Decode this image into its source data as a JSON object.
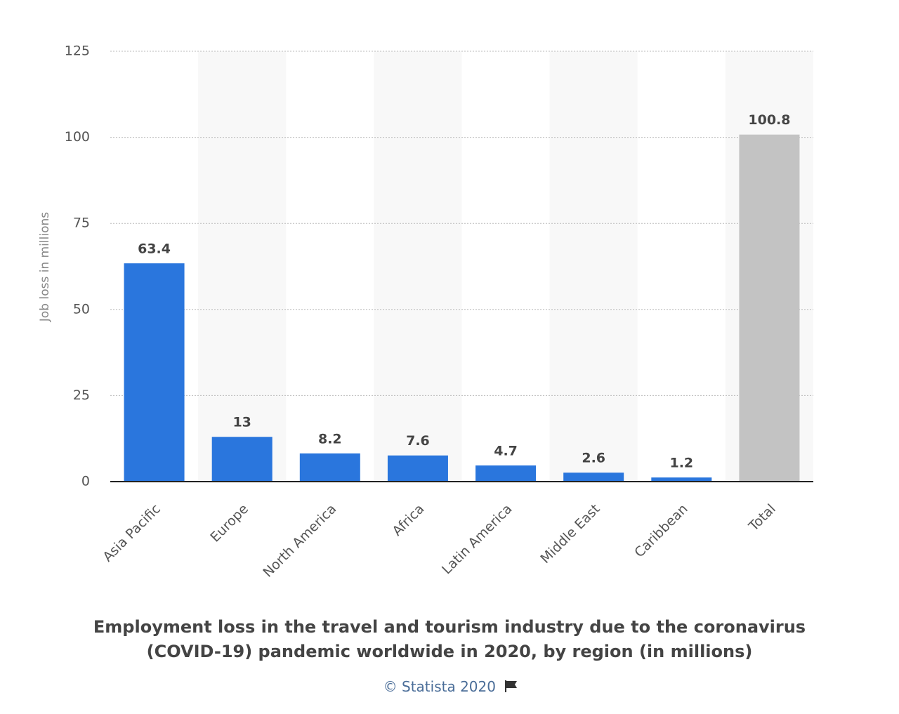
{
  "chart_data": {
    "type": "bar",
    "title": "Employment loss in the travel and tourism industry due to the coronavirus (COVID-19) pandemic worldwide in 2020, by region (in millions)",
    "y_label": "Job loss in millions",
    "categories": [
      "Asia Pacific",
      "Europe",
      "North America",
      "Africa",
      "Latin America",
      "Middle East",
      "Caribbean",
      "Total"
    ],
    "values": [
      63.4,
      13,
      8.2,
      7.6,
      4.7,
      2.6,
      1.2,
      100.8
    ],
    "colors": [
      "#2a76dd",
      "#2a76dd",
      "#2a76dd",
      "#2a76dd",
      "#2a76dd",
      "#2a76dd",
      "#2a76dd",
      "#c3c3c3"
    ],
    "ylim": [
      0,
      125
    ],
    "yticks": [
      0,
      25,
      50,
      75,
      100,
      125
    ],
    "grid": true,
    "source": "© Statista 2020"
  }
}
